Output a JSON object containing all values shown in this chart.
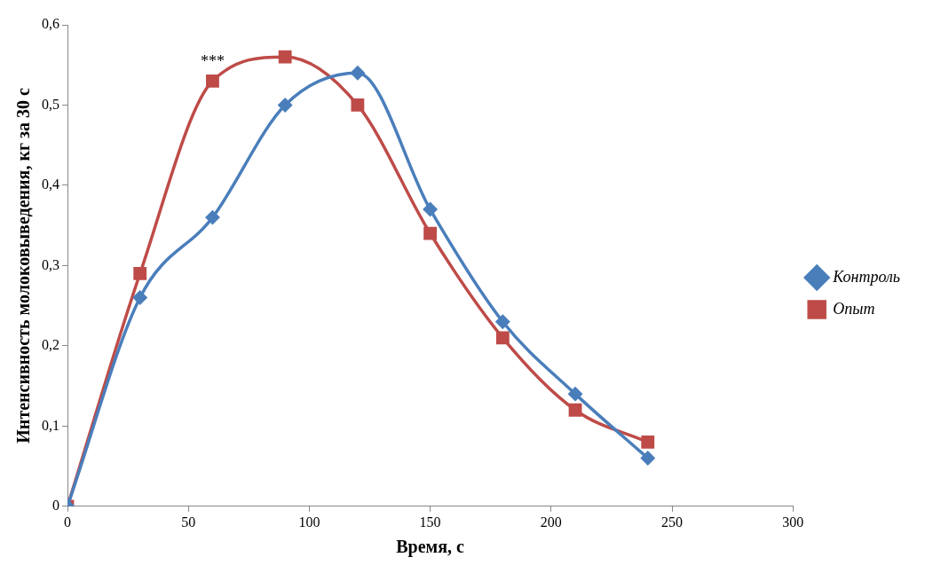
{
  "chart_data": {
    "type": "line",
    "xlabel": "Время, с",
    "ylabel": "Интенсивность молоковыведения, кг за 30 с",
    "x": [
      0,
      30,
      60,
      90,
      120,
      150,
      180,
      210,
      240
    ],
    "series": [
      {
        "name": "Контроль",
        "color": "#4a7ebb",
        "marker": "diamond",
        "values": [
          0,
          0.26,
          0.36,
          0.5,
          0.54,
          0.37,
          0.23,
          0.14,
          0.06
        ]
      },
      {
        "name": "Опыт",
        "color": "#be4b48",
        "marker": "square",
        "values": [
          0,
          0.29,
          0.53,
          0.56,
          0.5,
          0.34,
          0.21,
          0.12,
          0.08
        ]
      }
    ],
    "xlim": [
      0,
      300
    ],
    "xticks": [
      0,
      50,
      100,
      150,
      200,
      250,
      300
    ],
    "ylim": [
      0,
      0.6
    ],
    "yticks": [
      0,
      {
        "value": 0.1,
        "label": "0,1"
      },
      {
        "value": 0.2,
        "label": "0,2"
      },
      {
        "value": 0.3,
        "label": "0,3"
      },
      {
        "value": 0.4,
        "label": "0,4"
      },
      {
        "value": 0.5,
        "label": "0,5"
      },
      {
        "value": 0.6,
        "label": "0,6"
      }
    ],
    "annotations": [
      {
        "text": "***",
        "x": 60,
        "y": 0.53
      }
    ],
    "grid": false,
    "legend": "right",
    "line_style": "solid"
  }
}
